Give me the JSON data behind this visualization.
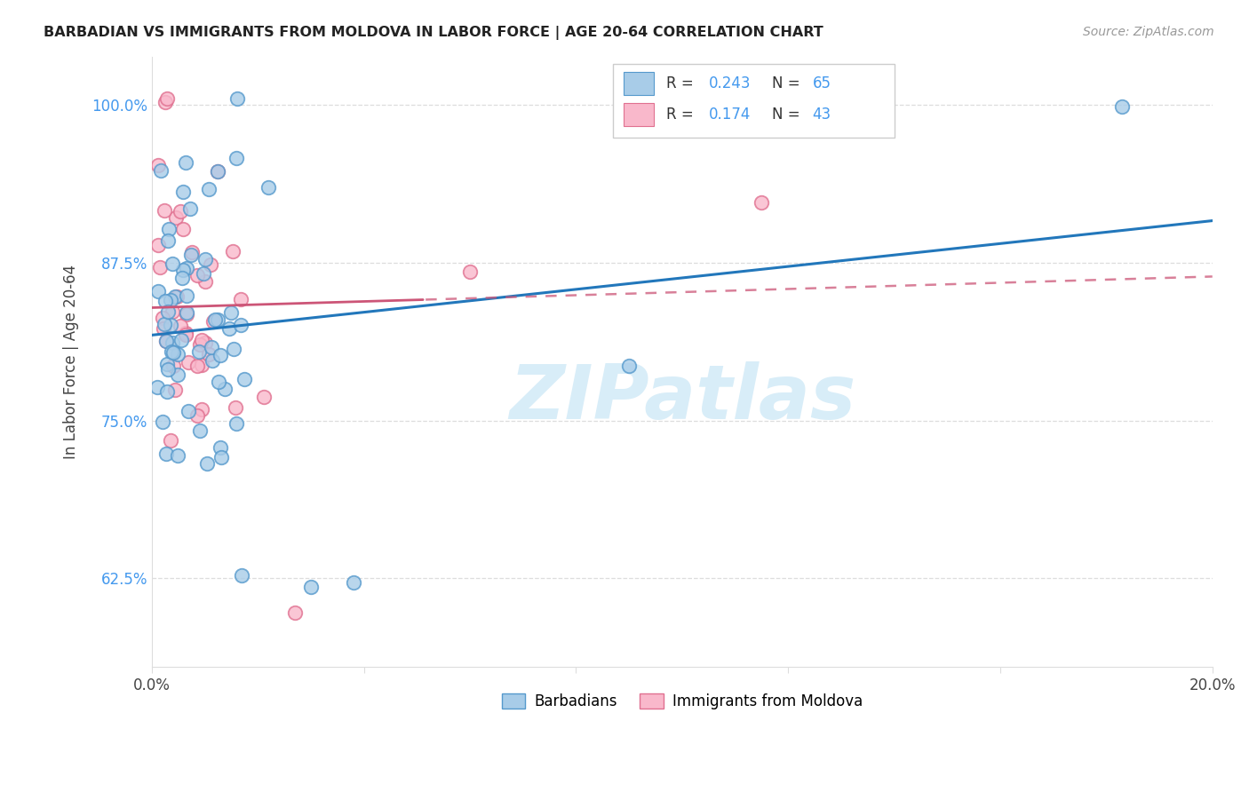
{
  "title": "BARBADIAN VS IMMIGRANTS FROM MOLDOVA IN LABOR FORCE | AGE 20-64 CORRELATION CHART",
  "source": "Source: ZipAtlas.com",
  "ylabel": "In Labor Force | Age 20-64",
  "xlim": [
    0.0,
    0.2
  ],
  "ylim": [
    0.555,
    1.038
  ],
  "yticks": [
    0.625,
    0.75,
    0.875,
    1.0
  ],
  "ytick_labels": [
    "62.5%",
    "75.0%",
    "87.5%",
    "100.0%"
  ],
  "xticks": [
    0.0,
    0.04,
    0.08,
    0.12,
    0.16,
    0.2
  ],
  "xtick_labels": [
    "0.0%",
    "",
    "",
    "",
    "",
    "20.0%"
  ],
  "blue_r": "0.243",
  "blue_n": "65",
  "pink_r": "0.174",
  "pink_n": "43",
  "legend_label_blue": "Barbadians",
  "legend_label_pink": "Immigrants from Moldova",
  "blue_face_color": "#a8cce8",
  "pink_face_color": "#f9b8cb",
  "blue_edge_color": "#5599cc",
  "pink_edge_color": "#e07090",
  "blue_line_color": "#2277bb",
  "pink_line_color": "#cc5577",
  "watermark_text": "ZIPatlas",
  "watermark_color": "#d8edf8",
  "title_color": "#222222",
  "source_color": "#999999",
  "grid_color": "#dddddd",
  "ytick_label_color": "#4499ee",
  "rn_color": "#4499ee"
}
